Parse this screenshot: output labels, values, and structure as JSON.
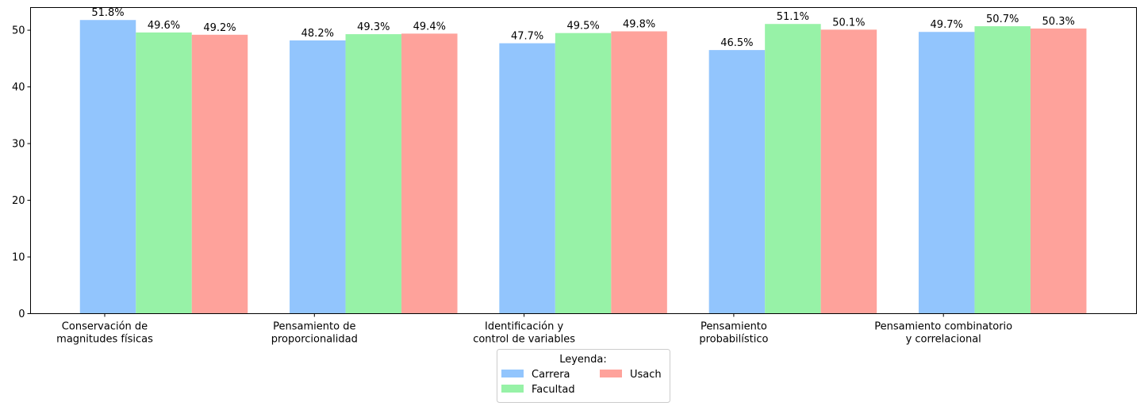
{
  "chart_data": {
    "type": "bar",
    "categories": [
      [
        "Conservación de",
        "magnitudes físicas"
      ],
      [
        "Pensamiento de",
        "proporcionalidad"
      ],
      [
        "Identificación y",
        "control de variables"
      ],
      [
        "Pensamiento",
        "probabilístico"
      ],
      [
        "Pensamiento combinatorio",
        "y correlacional"
      ]
    ],
    "series": [
      {
        "name": "Carrera",
        "color": "#92c5fd",
        "values": [
          51.8,
          48.2,
          47.7,
          46.5,
          49.7
        ]
      },
      {
        "name": "Facultad",
        "color": "#97f2a7",
        "values": [
          49.6,
          49.3,
          49.5,
          51.1,
          50.7
        ]
      },
      {
        "name": "Usach",
        "color": "#fea29b",
        "values": [
          49.2,
          49.4,
          49.8,
          50.1,
          50.3
        ]
      }
    ],
    "value_suffix": "%",
    "ylim": [
      0,
      54
    ],
    "yticks": [
      0,
      10,
      20,
      30,
      40,
      50
    ],
    "legend": {
      "title": "Leyenda:",
      "placement": "bottom-center",
      "columns": 2
    },
    "grid": false
  }
}
